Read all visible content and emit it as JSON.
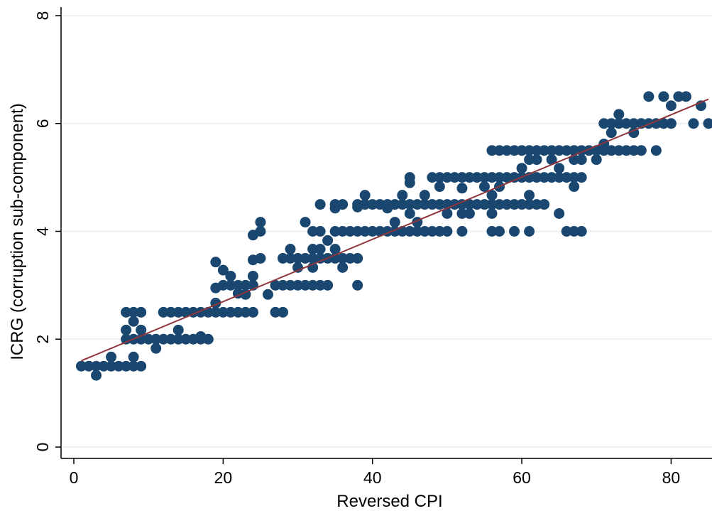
{
  "chart_data": {
    "type": "scatter",
    "title": "",
    "xlabel": "Reversed CPI",
    "ylabel": "ICRG (corruption sub-component)",
    "xlim": [
      0,
      85
    ],
    "ylim": [
      0,
      8
    ],
    "x_ticks": [
      "0",
      "20",
      "40",
      "60",
      "80"
    ],
    "y_ticks": [
      "0",
      "2",
      "4",
      "6",
      "8"
    ],
    "grid": true,
    "grid_axis": "y",
    "marker_color": "#1a476f",
    "line_color": "#90353b",
    "fit_line": {
      "x": [
        1,
        85
      ],
      "y": [
        1.6,
        6.45
      ]
    },
    "series": [
      {
        "points": [
          [
            1,
            1.5
          ],
          [
            2,
            1.5
          ],
          [
            3,
            1.5
          ],
          [
            3,
            1.33
          ],
          [
            4,
            1.5
          ],
          [
            5,
            1.5
          ],
          [
            5,
            1.67
          ],
          [
            6,
            1.5
          ],
          [
            7,
            1.5
          ],
          [
            7,
            2
          ],
          [
            7,
            2.17
          ],
          [
            7,
            2.5
          ],
          [
            8,
            2
          ],
          [
            8,
            2.33
          ],
          [
            8,
            2.5
          ],
          [
            8,
            1.5
          ],
          [
            8,
            1.67
          ],
          [
            9,
            2
          ],
          [
            9,
            2.17
          ],
          [
            9,
            2.5
          ],
          [
            9,
            1.5
          ],
          [
            10,
            2
          ],
          [
            11,
            2
          ],
          [
            11,
            1.83
          ],
          [
            12,
            2
          ],
          [
            12,
            2.5
          ],
          [
            13,
            2
          ],
          [
            13,
            2.5
          ],
          [
            14,
            2
          ],
          [
            14,
            2.17
          ],
          [
            14,
            2.5
          ],
          [
            15,
            2
          ],
          [
            15,
            2.5
          ],
          [
            16,
            2
          ],
          [
            16,
            2.5
          ],
          [
            17,
            2
          ],
          [
            17,
            2.05
          ],
          [
            17,
            2.5
          ],
          [
            18,
            2
          ],
          [
            18,
            2.5
          ],
          [
            19,
            2.5
          ],
          [
            19,
            2.67
          ],
          [
            19,
            2.95
          ],
          [
            19,
            3.43
          ],
          [
            20,
            2.5
          ],
          [
            20,
            3
          ],
          [
            20,
            3.28
          ],
          [
            21,
            2.5
          ],
          [
            21,
            3
          ],
          [
            21,
            3.17
          ],
          [
            22,
            2.5
          ],
          [
            22,
            2.85
          ],
          [
            22,
            3
          ],
          [
            23,
            2.5
          ],
          [
            23,
            2.83
          ],
          [
            23,
            3
          ],
          [
            24,
            2.5
          ],
          [
            24,
            3
          ],
          [
            24,
            3.17
          ],
          [
            24,
            3.47
          ],
          [
            24,
            3.93
          ],
          [
            25,
            3.5
          ],
          [
            25,
            4
          ],
          [
            25,
            4.17
          ],
          [
            26,
            2.83
          ],
          [
            27,
            2.5
          ],
          [
            27,
            3
          ],
          [
            28,
            2.5
          ],
          [
            28,
            3
          ],
          [
            28,
            3.5
          ],
          [
            29,
            3
          ],
          [
            29,
            3.5
          ],
          [
            29,
            3.67
          ],
          [
            30,
            3
          ],
          [
            30,
            3.33
          ],
          [
            30,
            3.5
          ],
          [
            31,
            3
          ],
          [
            31,
            3.5
          ],
          [
            31,
            4.17
          ],
          [
            32,
            3
          ],
          [
            32,
            3.33
          ],
          [
            32,
            3.5
          ],
          [
            32,
            3.67
          ],
          [
            32,
            4
          ],
          [
            33,
            3
          ],
          [
            33,
            3.5
          ],
          [
            33,
            3.67
          ],
          [
            33,
            4
          ],
          [
            33,
            4.5
          ],
          [
            34,
            3
          ],
          [
            34,
            3.5
          ],
          [
            34,
            3.83
          ],
          [
            35,
            3.5
          ],
          [
            35,
            3.67
          ],
          [
            35,
            4
          ],
          [
            35,
            4.43
          ],
          [
            35,
            4.5
          ],
          [
            36,
            3.33
          ],
          [
            36,
            3.5
          ],
          [
            36,
            4
          ],
          [
            36,
            4.5
          ],
          [
            37,
            3.5
          ],
          [
            37,
            4
          ],
          [
            38,
            3
          ],
          [
            38,
            3.5
          ],
          [
            38,
            4
          ],
          [
            38,
            4.45
          ],
          [
            38,
            4.5
          ],
          [
            39,
            4
          ],
          [
            39,
            4.5
          ],
          [
            39,
            4.67
          ],
          [
            40,
            4
          ],
          [
            40,
            4.5
          ],
          [
            41,
            4
          ],
          [
            41,
            4.5
          ],
          [
            42,
            4
          ],
          [
            42,
            4.43
          ],
          [
            42,
            4.5
          ],
          [
            43,
            4
          ],
          [
            43,
            4.17
          ],
          [
            43,
            4.5
          ],
          [
            44,
            4
          ],
          [
            44,
            4.5
          ],
          [
            44,
            4.67
          ],
          [
            45,
            4
          ],
          [
            45,
            4.33
          ],
          [
            45,
            4.5
          ],
          [
            45,
            4.9
          ],
          [
            45,
            5
          ],
          [
            46,
            4
          ],
          [
            46,
            4.17
          ],
          [
            46,
            4.5
          ],
          [
            47,
            4
          ],
          [
            47,
            4.5
          ],
          [
            47,
            4.67
          ],
          [
            48,
            4
          ],
          [
            48,
            4.5
          ],
          [
            48,
            5
          ],
          [
            49,
            4
          ],
          [
            49,
            4.5
          ],
          [
            49,
            4.83
          ],
          [
            49,
            5
          ],
          [
            50,
            4
          ],
          [
            50,
            4.33
          ],
          [
            50,
            4.5
          ],
          [
            50,
            5
          ],
          [
            51,
            4.5
          ],
          [
            51,
            5
          ],
          [
            52,
            4
          ],
          [
            52,
            4.33
          ],
          [
            52,
            4.5
          ],
          [
            52,
            4.8
          ],
          [
            52,
            5
          ],
          [
            53,
            4.33
          ],
          [
            53,
            4.5
          ],
          [
            53,
            5
          ],
          [
            54,
            4.5
          ],
          [
            54,
            5
          ],
          [
            55,
            4.5
          ],
          [
            55,
            4.83
          ],
          [
            55,
            5
          ],
          [
            56,
            4
          ],
          [
            56,
            4.33
          ],
          [
            56,
            4.5
          ],
          [
            56,
            4.67
          ],
          [
            56,
            5
          ],
          [
            56,
            5.5
          ],
          [
            57,
            4
          ],
          [
            57,
            4.5
          ],
          [
            57,
            4.83
          ],
          [
            57,
            5
          ],
          [
            57,
            5.5
          ],
          [
            58,
            4.5
          ],
          [
            58,
            5
          ],
          [
            58,
            5.5
          ],
          [
            59,
            4
          ],
          [
            59,
            4.5
          ],
          [
            59,
            5
          ],
          [
            59,
            5.5
          ],
          [
            60,
            4.5
          ],
          [
            60,
            5
          ],
          [
            60,
            5.17
          ],
          [
            60,
            5.5
          ],
          [
            61,
            4
          ],
          [
            61,
            4.5
          ],
          [
            61,
            4.67
          ],
          [
            61,
            5
          ],
          [
            61,
            5.33
          ],
          [
            61,
            5.5
          ],
          [
            62,
            4.5
          ],
          [
            62,
            5
          ],
          [
            62,
            5.33
          ],
          [
            62,
            5.5
          ],
          [
            63,
            4.5
          ],
          [
            63,
            5
          ],
          [
            63,
            5.5
          ],
          [
            64,
            5
          ],
          [
            64,
            5.33
          ],
          [
            64,
            5.5
          ],
          [
            65,
            4.33
          ],
          [
            65,
            5
          ],
          [
            65,
            5.17
          ],
          [
            65,
            5.5
          ],
          [
            66,
            4
          ],
          [
            66,
            5
          ],
          [
            66,
            5.5
          ],
          [
            67,
            4
          ],
          [
            67,
            4.83
          ],
          [
            67,
            5
          ],
          [
            67,
            5.33
          ],
          [
            67,
            5.5
          ],
          [
            68,
            4
          ],
          [
            68,
            5
          ],
          [
            68,
            5.33
          ],
          [
            68,
            5.5
          ],
          [
            69,
            5.5
          ],
          [
            70,
            5.33
          ],
          [
            70,
            5.5
          ],
          [
            71,
            5.5
          ],
          [
            71,
            5.62
          ],
          [
            71,
            6
          ],
          [
            72,
            5.5
          ],
          [
            72,
            5.83
          ],
          [
            72,
            6
          ],
          [
            73,
            5.5
          ],
          [
            73,
            6
          ],
          [
            73,
            6.17
          ],
          [
            74,
            5.5
          ],
          [
            74,
            6
          ],
          [
            75,
            5.5
          ],
          [
            75,
            5.83
          ],
          [
            75,
            6
          ],
          [
            76,
            5.5
          ],
          [
            76,
            6
          ],
          [
            77,
            6
          ],
          [
            77,
            6.5
          ],
          [
            78,
            5.5
          ],
          [
            78,
            6
          ],
          [
            79,
            6
          ],
          [
            79,
            6.5
          ],
          [
            80,
            6
          ],
          [
            80,
            6.33
          ],
          [
            81,
            6.5
          ],
          [
            82,
            6.5
          ],
          [
            83,
            6
          ],
          [
            84,
            6.33
          ],
          [
            85,
            6
          ]
        ]
      }
    ]
  }
}
